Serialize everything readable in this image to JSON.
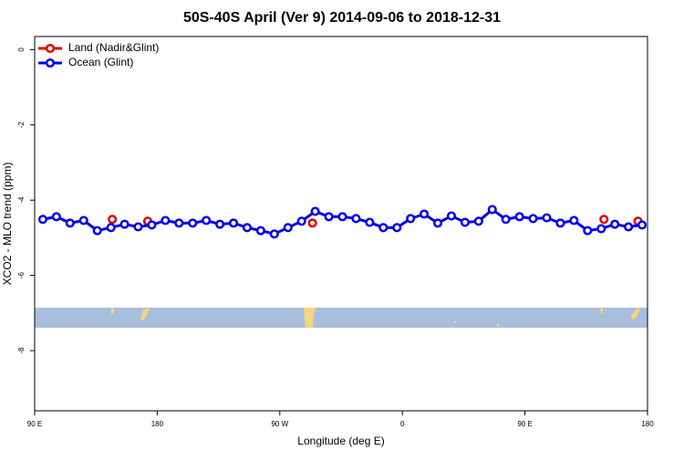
{
  "chart_data": {
    "type": "line",
    "title": "50S-40S April (Ver 9)   2014-09-06 to 2018-12-31",
    "xlabel": "Longitude (deg E)",
    "ylabel": "XCO2 - MLO trend (ppm)",
    "xlim": [
      90,
      540
    ],
    "xticks": [
      {
        "value": 90,
        "label": "90 E"
      },
      180,
      {
        "value": 270,
        "label": "90 W"
      },
      {
        "value": 360,
        "label": "0"
      },
      {
        "value": 450,
        "label": "90 E"
      },
      {
        "value": 540,
        "label": "180"
      }
    ],
    "ylim": [
      -9.6,
      0.35
    ],
    "yticks": [
      0,
      -2,
      -4,
      -6,
      -8
    ],
    "legend": "upper left",
    "series": [
      {
        "name": "Land (Nadir&Glint)",
        "color": "#e00000",
        "x": [
          147,
          173,
          294,
          508,
          533
        ],
        "values": [
          -4.51,
          -4.56,
          -4.61,
          -4.51,
          -4.56
        ]
      },
      {
        "name": "Ocean (Glint)",
        "color": "#0000ee",
        "x": [
          96,
          106,
          116,
          126,
          136,
          146,
          156,
          166,
          176,
          186,
          196,
          206,
          216,
          226,
          236,
          246,
          256,
          266,
          276,
          286,
          296,
          306,
          316,
          326,
          336,
          346,
          356,
          366,
          376,
          386,
          396,
          406,
          416,
          426,
          436,
          446,
          456,
          466,
          476,
          486,
          496,
          506,
          516,
          526,
          536
        ],
        "values": [
          -4.51,
          -4.44,
          -4.61,
          -4.54,
          -4.81,
          -4.73,
          -4.64,
          -4.71,
          -4.66,
          -4.54,
          -4.61,
          -4.61,
          -4.54,
          -4.64,
          -4.61,
          -4.73,
          -4.81,
          -4.9,
          -4.73,
          -4.56,
          -4.3,
          -4.44,
          -4.44,
          -4.49,
          -4.59,
          -4.73,
          -4.73,
          -4.49,
          -4.37,
          -4.61,
          -4.42,
          -4.59,
          -4.56,
          -4.25,
          -4.51,
          -4.44,
          -4.49,
          -4.47,
          -4.61,
          -4.54,
          -4.81,
          -4.76,
          -4.64,
          -4.71,
          -4.66
        ]
      }
    ]
  }
}
